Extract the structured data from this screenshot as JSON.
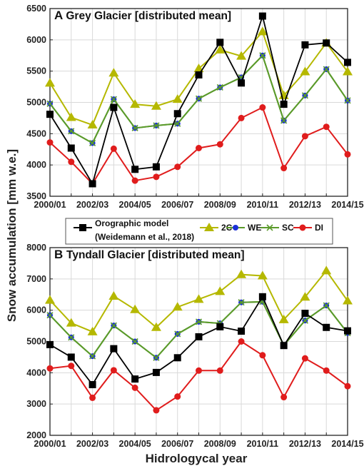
{
  "ylabel": "Snow accumulation [mm w.e.]",
  "xlabel": "Hidrologycal year",
  "legend": {
    "orographic_line1": "Orographic model",
    "orographic_line2": "(Weidemann et al., 2018)",
    "c2": "2C",
    "we": "WE",
    "sc": "SC",
    "di": "DI"
  },
  "colors": {
    "orographic": "#000000",
    "c2": "#b5b800",
    "we": "#1b2fd6",
    "sc": "#5a9a2a",
    "di": "#e01c1c",
    "grid": "#d9d9d9",
    "axis": "#222222"
  },
  "chart_data": [
    {
      "type": "line",
      "panel_letter": "A",
      "title": "Grey Glacier [distributed mean]",
      "x": [
        "2000/01",
        "2001/02",
        "2002/03",
        "2003/04",
        "2004/05",
        "2005/06",
        "2006/07",
        "2007/08",
        "2008/09",
        "2009/10",
        "2010/11",
        "2011/12",
        "2012/13",
        "2013/14",
        "2014/15"
      ],
      "xticks": [
        "2000/01",
        "2002/03",
        "2004/05",
        "2006/07",
        "2008/09",
        "2010/11",
        "2012/13",
        "2014/15"
      ],
      "ylim": [
        3500,
        6500
      ],
      "yticks": [
        3500,
        4000,
        4500,
        5000,
        5500,
        6000,
        6500
      ],
      "grid": true,
      "series": [
        {
          "name": "Orographic model (Weidemann et al., 2018)",
          "key": "orographic",
          "values": [
            4810,
            4270,
            3700,
            4920,
            3930,
            3970,
            4820,
            5440,
            5960,
            5310,
            6380,
            4970,
            5920,
            5950,
            5640
          ]
        },
        {
          "name": "2C",
          "key": "c2",
          "values": [
            5310,
            4760,
            4640,
            5470,
            4970,
            4940,
            5050,
            5540,
            5840,
            5740,
            6130,
            5110,
            5490,
            5950,
            5490
          ]
        },
        {
          "name": "WE",
          "key": "we",
          "values": [
            4980,
            4540,
            4350,
            5050,
            4590,
            4630,
            4660,
            5060,
            5240,
            5400,
            5750,
            4710,
            5110,
            5530,
            5030
          ]
        },
        {
          "name": "SC",
          "key": "sc",
          "values": [
            4980,
            4540,
            4350,
            5050,
            4590,
            4630,
            4660,
            5060,
            5240,
            5400,
            5750,
            4710,
            5110,
            5530,
            5030
          ]
        },
        {
          "name": "DI",
          "key": "di",
          "values": [
            4360,
            4050,
            3700,
            4260,
            3750,
            3810,
            3970,
            4270,
            4330,
            4750,
            4920,
            3950,
            4460,
            4610,
            4170
          ]
        }
      ]
    },
    {
      "type": "line",
      "panel_letter": "B",
      "title": "Tyndall Glacier [distributed mean]",
      "x": [
        "2000/01",
        "2001/02",
        "2002/03",
        "2003/04",
        "2004/05",
        "2005/06",
        "2006/07",
        "2007/08",
        "2008/09",
        "2009/10",
        "2010/11",
        "2011/12",
        "2012/13",
        "2013/14",
        "2014/15"
      ],
      "xticks": [
        "2000/01",
        "2002/03",
        "2004/05",
        "2006/07",
        "2008/09",
        "2010/11",
        "2012/13",
        "2014/15"
      ],
      "ylim": [
        2000,
        8000
      ],
      "yticks": [
        2000,
        3000,
        4000,
        5000,
        6000,
        7000,
        8000
      ],
      "grid": true,
      "series": [
        {
          "name": "Orographic model (Weidemann et al., 2018)",
          "key": "orographic",
          "values": [
            4900,
            4500,
            3620,
            4770,
            3800,
            4010,
            4480,
            5150,
            5470,
            5330,
            6430,
            4870,
            5900,
            5450,
            5340
          ]
        },
        {
          "name": "2C",
          "key": "c2",
          "values": [
            6320,
            5590,
            5310,
            6450,
            6020,
            5450,
            6100,
            6350,
            6600,
            7140,
            7100,
            5700,
            6420,
            7260,
            6300
          ]
        },
        {
          "name": "WE",
          "key": "we",
          "values": [
            5840,
            5130,
            4530,
            5510,
            5000,
            4480,
            5240,
            5630,
            5580,
            6250,
            6270,
            4880,
            5670,
            6150,
            5270
          ]
        },
        {
          "name": "SC",
          "key": "sc",
          "values": [
            5840,
            5130,
            4530,
            5510,
            5000,
            4480,
            5240,
            5630,
            5580,
            6250,
            6270,
            4880,
            5670,
            6150,
            5270
          ]
        },
        {
          "name": "DI",
          "key": "di",
          "values": [
            4140,
            4220,
            3200,
            4080,
            3520,
            2800,
            3240,
            4070,
            4070,
            5000,
            4560,
            3220,
            4460,
            4070,
            3570
          ]
        }
      ]
    }
  ]
}
